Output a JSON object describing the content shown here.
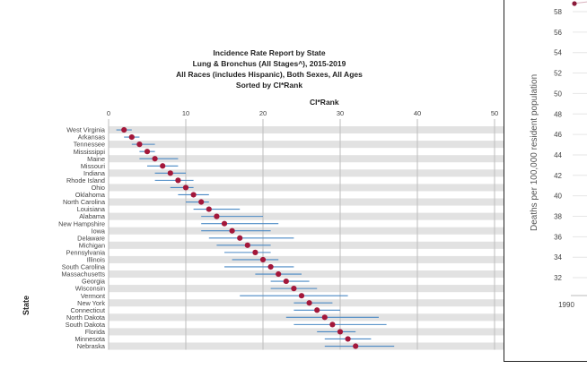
{
  "report": {
    "title_lines": [
      "Incidence Rate Report by State",
      "Lung & Bronchus (All Stages^), 2015-2019",
      "All Races (includes Hispanic), Both Sexes, All Ages",
      "Sorted by CI*Rank"
    ]
  },
  "chart_data": {
    "type": "scatter",
    "title": "Incidence Rate Report by State",
    "xlabel": "CI*Rank",
    "ylabel": "State",
    "xlim": [
      0,
      50
    ],
    "x_ticks": [
      "0",
      "10",
      "20",
      "30",
      "40",
      "50"
    ],
    "grid": true,
    "series": [
      {
        "categories": [
          "West Virginia",
          "Arkansas",
          "Tennessee",
          "Mississippi",
          "Maine",
          "Missouri",
          "Indiana",
          "Rhode Island",
          "Ohio",
          "Oklahoma",
          "North Carolina",
          "Louisiana",
          "Alabama",
          "New Hampshire",
          "Iowa",
          "Delaware",
          "Michigan",
          "Pennsylvania",
          "Illinois",
          "South Carolina",
          "Massachusetts",
          "Georgia",
          "Wisconsin",
          "Vermont",
          "New York",
          "Connecticut",
          "North Dakota",
          "South Dakota",
          "Florida",
          "Minnesota",
          "Nebraska"
        ],
        "values": [
          2,
          3,
          4,
          5,
          6,
          7,
          8,
          9,
          10,
          11,
          12,
          13,
          14,
          15,
          16,
          17,
          18,
          19,
          20,
          21,
          22,
          23,
          24,
          25,
          26,
          27,
          28,
          29,
          30,
          31,
          32
        ],
        "ci_low": [
          1,
          2,
          3,
          4,
          4,
          5,
          6,
          6,
          8,
          9,
          10,
          11,
          12,
          12,
          12,
          13,
          14,
          15,
          16,
          15,
          19,
          21,
          21,
          17,
          24,
          24,
          23,
          24,
          27,
          28,
          28
        ],
        "ci_high": [
          3,
          4,
          6,
          6,
          9,
          9,
          10,
          11,
          11,
          13,
          13,
          17,
          20,
          22,
          21,
          24,
          21,
          21,
          22,
          24,
          25,
          26,
          27,
          31,
          29,
          30,
          35,
          36,
          32,
          34,
          37
        ]
      }
    ]
  },
  "overlay_chart": {
    "y_ticks": [
      "58",
      "56",
      "54",
      "52",
      "50",
      "48",
      "46",
      "44",
      "42",
      "40",
      "38",
      "36",
      "34",
      "32"
    ],
    "y_values": [
      58,
      56,
      54,
      52,
      50,
      48,
      46,
      44,
      42,
      40,
      38,
      36,
      34,
      32
    ],
    "ylabel": "Deaths per 100,000 resident population",
    "x_tick": "1990",
    "point_color": "#8b1a3a"
  }
}
